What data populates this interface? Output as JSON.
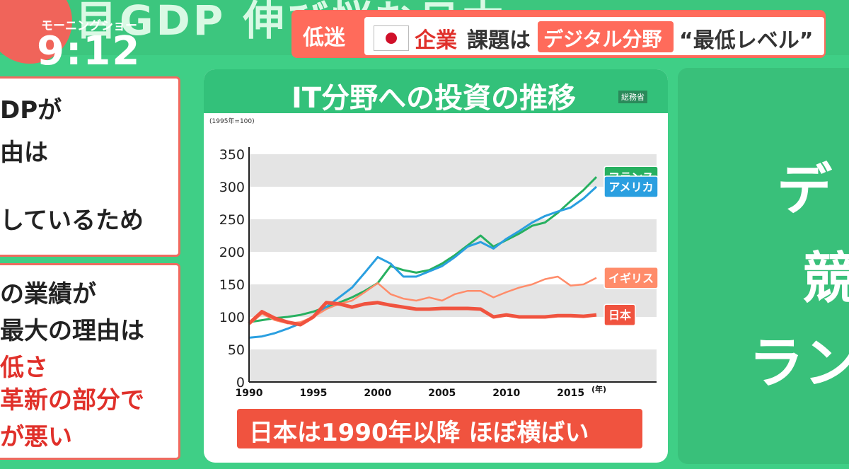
{
  "header": {
    "show_name": "モーニングショー",
    "clock": "9:12",
    "headline_low": "低迷",
    "headline_company": "企業",
    "headline_issue": "課題は",
    "headline_digital": "デジタル分野",
    "headline_lowest": "“最低レベル”"
  },
  "left_panel": {
    "line1": "DPが",
    "line2": "由は",
    "line3": "しているため",
    "line4": "の業績が",
    "line5": "最大の理由は",
    "line6": "低さ",
    "line7": "革新の部分で",
    "line8": "が悪い"
  },
  "right_panel": {
    "line1": "デ",
    "line2": "競",
    "line3": "ラン"
  },
  "chart_data": {
    "type": "line",
    "title": "IT分野への投資の推移",
    "source": "総務省",
    "unit_label": "(1995年=100)",
    "year_unit": "(年)",
    "ylim": [
      0,
      350
    ],
    "xlim": [
      1990,
      2017
    ],
    "yticks": [
      0,
      50,
      100,
      150,
      200,
      250,
      300,
      350
    ],
    "xticks": [
      "1990",
      "1995",
      "2000",
      "2005",
      "2010",
      "2015"
    ],
    "grid": "horizontal bands",
    "series": [
      {
        "name": "フランス",
        "color": "#27b060",
        "x": [
          1990,
          1991,
          1992,
          1993,
          1994,
          1995,
          1996,
          1997,
          1998,
          1999,
          2000,
          2001,
          2002,
          2003,
          2004,
          2005,
          2006,
          2007,
          2008,
          2009,
          2010,
          2011,
          2012,
          2013,
          2014,
          2015,
          2016,
          2017
        ],
        "values": [
          92,
          95,
          98,
          100,
          103,
          108,
          115,
          122,
          130,
          140,
          152,
          178,
          172,
          168,
          172,
          182,
          195,
          210,
          225,
          208,
          218,
          228,
          240,
          245,
          260,
          278,
          295,
          315
        ]
      },
      {
        "name": "アメリカ",
        "color": "#2a9fe0",
        "x": [
          1990,
          1991,
          1992,
          1993,
          1994,
          1995,
          1996,
          1997,
          1998,
          1999,
          2000,
          2001,
          2002,
          2003,
          2004,
          2005,
          2006,
          2007,
          2008,
          2009,
          2010,
          2011,
          2012,
          2013,
          2014,
          2015,
          2016,
          2017
        ],
        "values": [
          68,
          70,
          75,
          82,
          90,
          100,
          115,
          130,
          145,
          168,
          192,
          182,
          162,
          162,
          170,
          178,
          192,
          208,
          215,
          205,
          220,
          232,
          245,
          255,
          262,
          268,
          282,
          300
        ]
      },
      {
        "name": "イギリス",
        "color": "#ff8c6a",
        "x": [
          1990,
          1991,
          1992,
          1993,
          1994,
          1995,
          1996,
          1997,
          1998,
          1999,
          2000,
          2001,
          2002,
          2003,
          2004,
          2005,
          2006,
          2007,
          2008,
          2009,
          2010,
          2011,
          2012,
          2013,
          2014,
          2015,
          2016,
          2017
        ],
        "values": [
          88,
          105,
          95,
          90,
          92,
          100,
          112,
          120,
          125,
          138,
          152,
          135,
          128,
          125,
          130,
          125,
          135,
          140,
          140,
          130,
          138,
          145,
          150,
          158,
          162,
          148,
          150,
          160
        ]
      },
      {
        "name": "日本",
        "color": "#f0533f",
        "x": [
          1990,
          1991,
          1992,
          1993,
          1994,
          1995,
          1996,
          1997,
          1998,
          1999,
          2000,
          2001,
          2002,
          2003,
          2004,
          2005,
          2006,
          2007,
          2008,
          2009,
          2010,
          2011,
          2012,
          2013,
          2014,
          2015,
          2016,
          2017
        ],
        "values": [
          90,
          108,
          98,
          92,
          88,
          100,
          122,
          120,
          115,
          120,
          122,
          118,
          115,
          112,
          112,
          113,
          113,
          113,
          112,
          100,
          103,
          100,
          100,
          100,
          102,
          102,
          101,
          103
        ]
      }
    ]
  },
  "footer": {
    "caption": "日本は1990年以降 ほぼ横ばい"
  },
  "colors": {
    "background": "#3fcf86",
    "accent_red": "#f0533f",
    "chart_green": "#33c17a"
  }
}
